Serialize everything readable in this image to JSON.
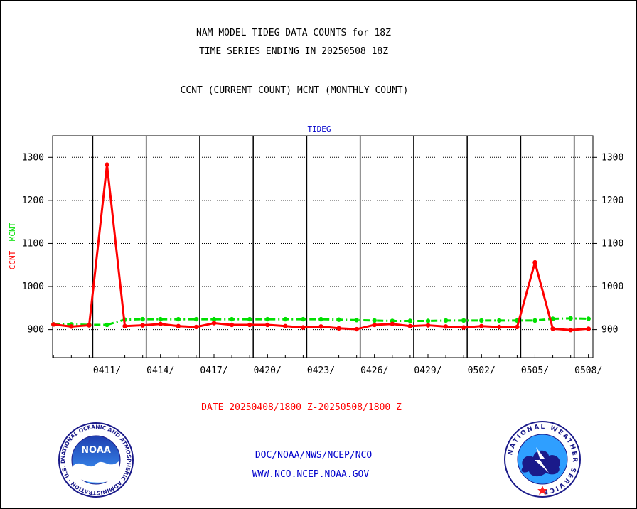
{
  "header": {
    "title_line1": "NAM MODEL TIDEG DATA COUNTS for 18Z",
    "title_line2": "TIME SERIES ENDING IN 20250508 18Z",
    "subtitle": "CCNT (CURRENT COUNT) MCNT (MONTHLY COUNT)"
  },
  "footer": {
    "date_range": "DATE 20250408/1800 Z-20250508/1800 Z",
    "org": "DOC/NOAA/NWS/NCEP/NCO",
    "url": "WWW.NCO.NCEP.NOAA.GOV",
    "noaa_logo_text": "NOAA",
    "noaa_ring_text": "NATIONAL OCEANIC AND ATMOSPHERIC ADMINISTRATION · U.S. DEPARTMENT OF COMMERCE ·",
    "nws_ring_text": "NATIONAL WEATHER SERVICE"
  },
  "colors": {
    "ccnt": "#ff0000",
    "mcnt": "#00e000",
    "panel_title": "#0000cc",
    "footer_blue": "#0000cc",
    "date_red": "#ff0000"
  },
  "chart_data": {
    "type": "line",
    "title": "TIDEG",
    "ylabel_ccnt": "CCNT",
    "ylabel_mcnt": "MCNT",
    "ylim": [
      835,
      1350
    ],
    "yticks": [
      900,
      1000,
      1100,
      1200,
      1300
    ],
    "x_tick_labels": [
      "0411/",
      "0414/",
      "0417/",
      "0420/",
      "0423/",
      "0426/",
      "0429/",
      "0502/",
      "0505/",
      "0508/"
    ],
    "x_tick_days": [
      3,
      6,
      9,
      12,
      15,
      18,
      21,
      24,
      27,
      30
    ],
    "vertical_grid_days": [
      2.2,
      5.2,
      8.2,
      11.2,
      14.2,
      17.2,
      20.2,
      23.2,
      26.2,
      29.2
    ],
    "x_range_days": [
      -0.05,
      30.25
    ],
    "grid": true,
    "x_day0_date": "2025-04-08",
    "series": [
      {
        "name": "CCNT",
        "color": "#ff0000",
        "x": [
          0,
          1,
          2,
          3,
          4,
          5,
          6,
          7,
          8,
          9,
          10,
          11,
          12,
          13,
          14,
          15,
          16,
          17,
          18,
          19,
          20,
          21,
          22,
          23,
          24,
          25,
          26,
          27,
          28,
          29,
          30
        ],
        "values": [
          912,
          907,
          910,
          1283,
          908,
          910,
          913,
          908,
          906,
          915,
          911,
          911,
          911,
          908,
          905,
          907,
          903,
          901,
          911,
          913,
          908,
          910,
          907,
          905,
          908,
          906,
          906,
          1056,
          902,
          899,
          902
        ]
      },
      {
        "name": "MCNT",
        "color": "#00e000",
        "x": [
          0,
          1,
          2,
          3,
          4,
          5,
          6,
          7,
          8,
          9,
          10,
          11,
          12,
          13,
          14,
          15,
          16,
          17,
          18,
          19,
          20,
          21,
          22,
          23,
          24,
          25,
          26,
          27,
          28,
          29,
          30
        ],
        "values": [
          912,
          912,
          911,
          911,
          923,
          924,
          924,
          924,
          924,
          924,
          924,
          924,
          924,
          924,
          924,
          924,
          923,
          922,
          921,
          920,
          920,
          920,
          921,
          921,
          921,
          921,
          921,
          921,
          925,
          926,
          925
        ]
      }
    ]
  }
}
